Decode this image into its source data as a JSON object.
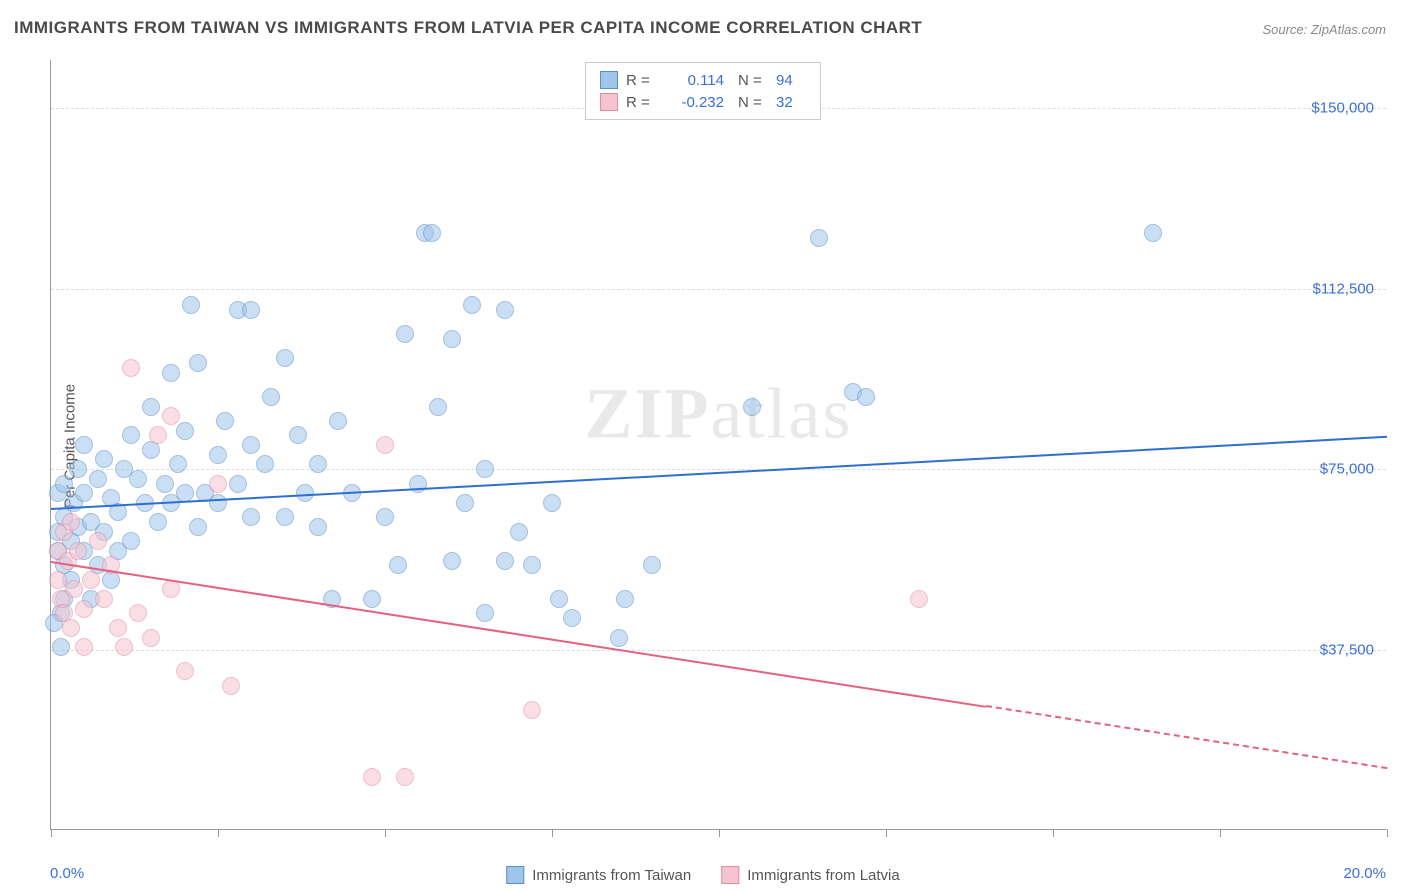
{
  "title": "IMMIGRANTS FROM TAIWAN VS IMMIGRANTS FROM LATVIA PER CAPITA INCOME CORRELATION CHART",
  "source": "Source: ZipAtlas.com",
  "ylabel": "Per Capita Income",
  "watermark_bold": "ZIP",
  "watermark_light": "atlas",
  "chart": {
    "type": "scatter",
    "xlim": [
      0,
      20
    ],
    "ylim": [
      0,
      160000
    ],
    "x_tick_step": 2.5,
    "x_min_label": "0.0%",
    "x_max_label": "20.0%",
    "y_gridlines": [
      37500,
      75000,
      112500,
      150000
    ],
    "y_tick_labels": [
      "$37,500",
      "$75,000",
      "$112,500",
      "$150,000"
    ],
    "background_color": "#ffffff",
    "grid_color": "#dddddd",
    "axis_color": "#999999",
    "point_radius": 9,
    "point_opacity": 0.55,
    "series": [
      {
        "name": "Immigrants from Taiwan",
        "fill": "#9fc5eb",
        "stroke": "#5b8fc9",
        "trend_color": "#2e6fd4",
        "trend": {
          "x1": 0,
          "y1": 67000,
          "x2": 20,
          "y2": 82000,
          "dashed_from": null
        },
        "R": "0.114",
        "N": "94",
        "points": [
          [
            0.1,
            62000
          ],
          [
            0.1,
            58000
          ],
          [
            0.1,
            70000
          ],
          [
            0.15,
            45000
          ],
          [
            0.2,
            48000
          ],
          [
            0.2,
            65000
          ],
          [
            0.2,
            72000
          ],
          [
            0.2,
            55000
          ],
          [
            0.3,
            60000
          ],
          [
            0.3,
            52000
          ],
          [
            0.35,
            68000
          ],
          [
            0.4,
            63000
          ],
          [
            0.4,
            75000
          ],
          [
            0.5,
            58000
          ],
          [
            0.5,
            70000
          ],
          [
            0.5,
            80000
          ],
          [
            0.6,
            64000
          ],
          [
            0.6,
            48000
          ],
          [
            0.7,
            73000
          ],
          [
            0.7,
            55000
          ],
          [
            0.8,
            62000
          ],
          [
            0.8,
            77000
          ],
          [
            0.9,
            69000
          ],
          [
            0.9,
            52000
          ],
          [
            1.0,
            66000
          ],
          [
            1.0,
            58000
          ],
          [
            1.1,
            75000
          ],
          [
            1.2,
            82000
          ],
          [
            1.2,
            60000
          ],
          [
            1.3,
            73000
          ],
          [
            1.4,
            68000
          ],
          [
            1.5,
            79000
          ],
          [
            1.5,
            88000
          ],
          [
            1.6,
            64000
          ],
          [
            1.7,
            72000
          ],
          [
            1.8,
            95000
          ],
          [
            1.8,
            68000
          ],
          [
            1.9,
            76000
          ],
          [
            2.0,
            70000
          ],
          [
            2.0,
            83000
          ],
          [
            2.1,
            109000
          ],
          [
            2.2,
            63000
          ],
          [
            2.2,
            97000
          ],
          [
            2.3,
            70000
          ],
          [
            2.5,
            78000
          ],
          [
            2.5,
            68000
          ],
          [
            2.6,
            85000
          ],
          [
            2.8,
            72000
          ],
          [
            2.8,
            108000
          ],
          [
            3.0,
            80000
          ],
          [
            3.0,
            65000
          ],
          [
            3.0,
            108000
          ],
          [
            3.2,
            76000
          ],
          [
            3.3,
            90000
          ],
          [
            3.5,
            65000
          ],
          [
            3.5,
            98000
          ],
          [
            3.7,
            82000
          ],
          [
            3.8,
            70000
          ],
          [
            4.0,
            63000
          ],
          [
            4.0,
            76000
          ],
          [
            4.2,
            48000
          ],
          [
            4.3,
            85000
          ],
          [
            4.5,
            70000
          ],
          [
            4.8,
            48000
          ],
          [
            5.0,
            65000
          ],
          [
            5.2,
            55000
          ],
          [
            5.3,
            103000
          ],
          [
            5.5,
            72000
          ],
          [
            5.6,
            124000
          ],
          [
            5.7,
            124000
          ],
          [
            5.8,
            88000
          ],
          [
            6.0,
            102000
          ],
          [
            6.0,
            56000
          ],
          [
            6.2,
            68000
          ],
          [
            6.3,
            109000
          ],
          [
            6.5,
            75000
          ],
          [
            6.5,
            45000
          ],
          [
            6.8,
            56000
          ],
          [
            6.8,
            108000
          ],
          [
            7.0,
            62000
          ],
          [
            7.2,
            55000
          ],
          [
            7.5,
            68000
          ],
          [
            7.6,
            48000
          ],
          [
            7.8,
            44000
          ],
          [
            8.5,
            40000
          ],
          [
            8.6,
            48000
          ],
          [
            9.0,
            55000
          ],
          [
            10.5,
            88000
          ],
          [
            11.5,
            123000
          ],
          [
            12.0,
            91000
          ],
          [
            12.2,
            90000
          ],
          [
            16.5,
            124000
          ],
          [
            0.05,
            43000
          ],
          [
            0.15,
            38000
          ]
        ]
      },
      {
        "name": "Immigrants from Latvia",
        "fill": "#f5c4d0",
        "stroke": "#e38ba3",
        "trend_color": "#e5617f",
        "trend": {
          "x1": 0,
          "y1": 56000,
          "x2": 20,
          "y2": 13000,
          "dashed_from": 14
        },
        "R": "-0.232",
        "N": "32",
        "points": [
          [
            0.1,
            58000
          ],
          [
            0.1,
            52000
          ],
          [
            0.15,
            48000
          ],
          [
            0.2,
            62000
          ],
          [
            0.2,
            45000
          ],
          [
            0.25,
            56000
          ],
          [
            0.3,
            42000
          ],
          [
            0.3,
            64000
          ],
          [
            0.35,
            50000
          ],
          [
            0.4,
            58000
          ],
          [
            0.5,
            46000
          ],
          [
            0.5,
            38000
          ],
          [
            0.6,
            52000
          ],
          [
            0.7,
            60000
          ],
          [
            0.8,
            48000
          ],
          [
            0.9,
            55000
          ],
          [
            1.0,
            42000
          ],
          [
            1.1,
            38000
          ],
          [
            1.2,
            96000
          ],
          [
            1.3,
            45000
          ],
          [
            1.5,
            40000
          ],
          [
            1.6,
            82000
          ],
          [
            1.8,
            50000
          ],
          [
            1.8,
            86000
          ],
          [
            2.0,
            33000
          ],
          [
            2.5,
            72000
          ],
          [
            2.7,
            30000
          ],
          [
            4.8,
            11000
          ],
          [
            5.0,
            80000
          ],
          [
            5.3,
            11000
          ],
          [
            7.2,
            25000
          ],
          [
            13.0,
            48000
          ]
        ]
      }
    ]
  },
  "legend_top": {
    "r_label": "R =",
    "n_label": "N ="
  }
}
